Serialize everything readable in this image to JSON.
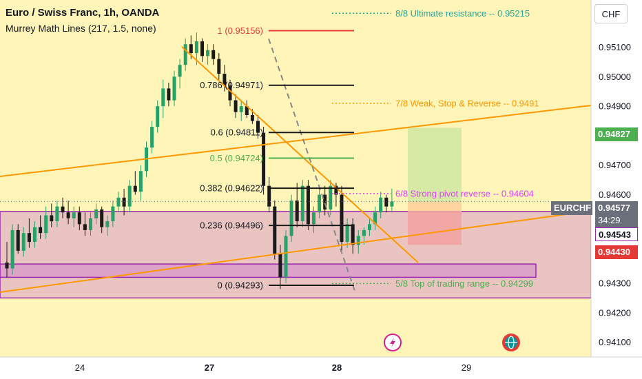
{
  "header": {
    "title": "Euro / Swiss Franc, 1h, OANDA",
    "indicator": "Murrey Math Lines (217, 1.5, none)"
  },
  "currency_button": "CHF",
  "colors": {
    "background": "#fff5b8",
    "up": "#26a269",
    "down": "#1a1a1a",
    "trend": "#ff9800",
    "fib_red": "#e53935",
    "fib_green": "#4caf50",
    "zone_fill": "#d99ac8",
    "zone_border": "#9c27b0",
    "murrey_teal": "#26a69a",
    "murrey_orange": "#ff9800",
    "murrey_magenta": "#e040fb",
    "murrey_green": "#4caf50"
  },
  "price_labels": {
    "symbol": "EURCHF",
    "last": "0.94577",
    "countdown": "34:29",
    "target": "0.94827",
    "entry": "0.94543",
    "stop": "0.94430"
  },
  "icons": [
    "flash-icon",
    "globe-icon"
  ],
  "chart_data": {
    "type": "candlestick",
    "ylim": [
      0.9405,
      0.9526
    ],
    "y_ticks": [
      "0.95100",
      "0.95000",
      "0.94900",
      "0.94800",
      "0.94700",
      "0.94600",
      "0.94400",
      "0.94300",
      "0.94200",
      "0.94100"
    ],
    "x_ticks": [
      "24",
      "27",
      "28",
      "29"
    ],
    "fib_levels": [
      {
        "label": "1 (0.95156)",
        "value": 0.95156,
        "color": "#e53935"
      },
      {
        "label": "0.786 (0.94971)",
        "value": 0.94971,
        "color": "#1a1a1a"
      },
      {
        "label": "0.6 (0.94811)",
        "value": 0.94811,
        "color": "#1a1a1a"
      },
      {
        "label": "0.5 (0.94724)",
        "value": 0.94724,
        "color": "#4caf50"
      },
      {
        "label": "0.382 (0.94622)",
        "value": 0.94622,
        "color": "#1a1a1a"
      },
      {
        "label": "0.236 (0.94496)",
        "value": 0.94496,
        "color": "#1a1a1a"
      },
      {
        "label": "0 (0.94293)",
        "value": 0.94293,
        "color": "#1a1a1a"
      }
    ],
    "murrey_lines": [
      {
        "label": "8/8 Ultimate resistance --  0.95215",
        "value": 0.95215,
        "color": "#26a69a"
      },
      {
        "label": "7/8 Weak, Stop & Reverse --  0.9491",
        "value": 0.9491,
        "color": "#ff9800"
      },
      {
        "label": "6/8 Strong pivot reverse --  0.94604",
        "value": 0.94604,
        "color": "#e040fb"
      },
      {
        "label": "5/8 Top of trading range --  0.94299",
        "value": 0.94299,
        "color": "#4caf50"
      }
    ],
    "candles": [
      [
        0.9437,
        0.9444,
        0.9432,
        0.9435
      ],
      [
        0.9435,
        0.945,
        0.9433,
        0.9448
      ],
      [
        0.9448,
        0.945,
        0.944,
        0.9441
      ],
      [
        0.9441,
        0.9449,
        0.9439,
        0.9447
      ],
      [
        0.9447,
        0.9452,
        0.9442,
        0.9444
      ],
      [
        0.9444,
        0.9451,
        0.9442,
        0.9449
      ],
      [
        0.9449,
        0.9453,
        0.9445,
        0.9447
      ],
      [
        0.9447,
        0.9456,
        0.9445,
        0.9453
      ],
      [
        0.9453,
        0.9457,
        0.9449,
        0.9451
      ],
      [
        0.9451,
        0.9458,
        0.9449,
        0.9456
      ],
      [
        0.9456,
        0.9459,
        0.9452,
        0.9454
      ],
      [
        0.9454,
        0.9458,
        0.945,
        0.9452
      ],
      [
        0.9452,
        0.9456,
        0.9449,
        0.9454
      ],
      [
        0.9454,
        0.9456,
        0.9448,
        0.945
      ],
      [
        0.945,
        0.9454,
        0.9446,
        0.9448
      ],
      [
        0.9448,
        0.9454,
        0.9446,
        0.9452
      ],
      [
        0.9452,
        0.9457,
        0.945,
        0.9455
      ],
      [
        0.9455,
        0.9456,
        0.9447,
        0.9449
      ],
      [
        0.9449,
        0.9453,
        0.9446,
        0.9451
      ],
      [
        0.9451,
        0.9458,
        0.9449,
        0.9456
      ],
      [
        0.9456,
        0.9461,
        0.9454,
        0.9459
      ],
      [
        0.9459,
        0.9462,
        0.9453,
        0.9456
      ],
      [
        0.9456,
        0.9465,
        0.9454,
        0.9463
      ],
      [
        0.9463,
        0.9468,
        0.946,
        0.9461
      ],
      [
        0.9461,
        0.947,
        0.9458,
        0.9468
      ],
      [
        0.9468,
        0.9478,
        0.9466,
        0.9476
      ],
      [
        0.9476,
        0.9485,
        0.9474,
        0.9483
      ],
      [
        0.9483,
        0.9492,
        0.9481,
        0.949
      ],
      [
        0.949,
        0.9499,
        0.9486,
        0.9496
      ],
      [
        0.9496,
        0.9498,
        0.949,
        0.9492
      ],
      [
        0.9492,
        0.9502,
        0.949,
        0.95
      ],
      [
        0.95,
        0.9506,
        0.9496,
        0.9504
      ],
      [
        0.9504,
        0.9513,
        0.9502,
        0.9511
      ],
      [
        0.9511,
        0.9514,
        0.9506,
        0.9508
      ],
      [
        0.9508,
        0.9515,
        0.9504,
        0.9512
      ],
      [
        0.9512,
        0.9513,
        0.9505,
        0.9507
      ],
      [
        0.9507,
        0.9511,
        0.9504,
        0.9509
      ],
      [
        0.9509,
        0.9511,
        0.9504,
        0.9506
      ],
      [
        0.9506,
        0.9508,
        0.9499,
        0.9501
      ],
      [
        0.9501,
        0.9504,
        0.9495,
        0.9497
      ],
      [
        0.9497,
        0.9499,
        0.949,
        0.9492
      ],
      [
        0.9492,
        0.9494,
        0.9486,
        0.9488
      ],
      [
        0.9488,
        0.9492,
        0.9485,
        0.949
      ],
      [
        0.949,
        0.9492,
        0.9486,
        0.9487
      ],
      [
        0.9487,
        0.9489,
        0.9484,
        0.9485
      ],
      [
        0.9485,
        0.9487,
        0.9479,
        0.9481
      ],
      [
        0.9481,
        0.9483,
        0.946,
        0.9463
      ],
      [
        0.9463,
        0.9466,
        0.9454,
        0.9456
      ],
      [
        0.9456,
        0.9458,
        0.9438,
        0.944
      ],
      [
        0.944,
        0.9443,
        0.9428,
        0.9432
      ],
      [
        0.9432,
        0.9448,
        0.943,
        0.9446
      ],
      [
        0.9446,
        0.946,
        0.9444,
        0.9458
      ],
      [
        0.9458,
        0.9464,
        0.9449,
        0.9451
      ],
      [
        0.9451,
        0.9465,
        0.9449,
        0.9463
      ],
      [
        0.9463,
        0.9465,
        0.9448,
        0.945
      ],
      [
        0.945,
        0.9456,
        0.9447,
        0.9454
      ],
      [
        0.9454,
        0.9462,
        0.9452,
        0.946
      ],
      [
        0.946,
        0.9463,
        0.9453,
        0.9455
      ],
      [
        0.9455,
        0.9465,
        0.9453,
        0.9463
      ],
      [
        0.9463,
        0.9464,
        0.9456,
        0.946
      ],
      [
        0.946,
        0.9463,
        0.944,
        0.9444
      ],
      [
        0.9444,
        0.9452,
        0.9442,
        0.945
      ],
      [
        0.945,
        0.9452,
        0.944,
        0.9443
      ],
      [
        0.9443,
        0.9448,
        0.944,
        0.9446
      ],
      [
        0.9446,
        0.9449,
        0.9443,
        0.9448
      ],
      [
        0.9448,
        0.9452,
        0.9446,
        0.945
      ],
      [
        0.945,
        0.9456,
        0.9448,
        0.9454
      ],
      [
        0.9454,
        0.9461,
        0.9452,
        0.9459
      ],
      [
        0.9459,
        0.946,
        0.9454,
        0.9456
      ],
      [
        0.9456,
        0.9462,
        0.9454,
        0.94577
      ]
    ]
  }
}
